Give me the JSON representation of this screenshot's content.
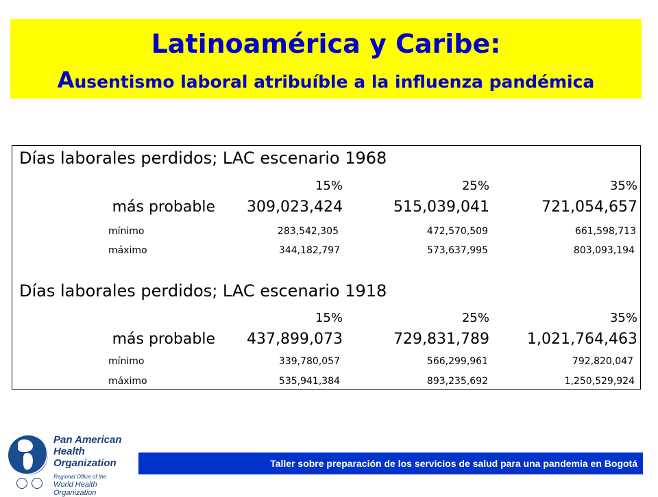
{
  "title": {
    "line1": "Latinoamérica y Caribe:",
    "line2_first": "A",
    "line2_rest": "usentismo laboral atribuíble a la influenza pandémica"
  },
  "sections": [
    {
      "heading": "Días laborales perdidos; LAC escenario 1968",
      "percentages": [
        "15%",
        "25%",
        "35%"
      ],
      "rows": [
        {
          "label": "más probable",
          "values": [
            "309,023,424",
            "515,039,041",
            "721,054,657"
          ]
        },
        {
          "label": "mínimo",
          "values": [
            "283,542,305",
            "472,570,509",
            "661,598,713"
          ]
        },
        {
          "label": "máximo",
          "values": [
            "344,182,797",
            "573,637,995",
            "803,093,194"
          ]
        }
      ]
    },
    {
      "heading": "Días laborales perdidos; LAC escenario 1918",
      "percentages": [
        "15%",
        "25%",
        "35%"
      ],
      "rows": [
        {
          "label": "más probable",
          "values": [
            "437,899,073",
            "729,831,789",
            "1,021,764,463"
          ]
        },
        {
          "label": "mínimo",
          "values": [
            "339,780,057",
            "566,299,961",
            "792,820,047"
          ]
        },
        {
          "label": "máximo",
          "values": [
            "535,941,384",
            "893,235,692",
            "1,250,529,924"
          ]
        }
      ]
    }
  ],
  "logo": {
    "org_name": [
      "Pan American",
      "Health",
      "Organization"
    ],
    "regional_line1": "Regional Office of the",
    "regional_line2": "World Health Organization"
  },
  "footer": {
    "text": "Taller sobre preparación de los servicios de salud para una pandemia en Bogotá"
  },
  "colors": {
    "title_band": "#ffff00",
    "title_text": "#0000cc",
    "footer_bar": "#0033cc"
  }
}
